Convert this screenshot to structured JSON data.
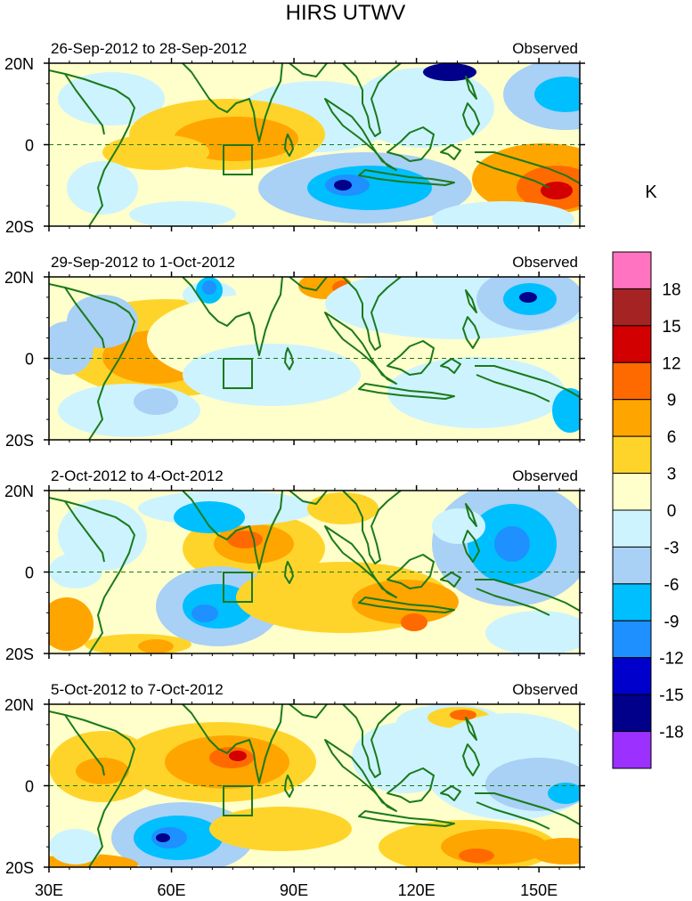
{
  "figure": {
    "title": "HIRS UTWV",
    "unit_label": "K"
  },
  "panels": [
    {
      "date_range": "26-Sep-2012 to 28-Sep-2012",
      "tag": "Observed"
    },
    {
      "date_range": "29-Sep-2012 to 1-Oct-2012",
      "tag": "Observed"
    },
    {
      "date_range": "2-Oct-2012 to 4-Oct-2012",
      "tag": "Observed"
    },
    {
      "date_range": "5-Oct-2012 to 7-Oct-2012",
      "tag": "Observed"
    }
  ],
  "axes": {
    "y_ticks": [
      "20N",
      "0",
      "20S"
    ],
    "x_ticks": [
      "30E",
      "60E",
      "90E",
      "120E",
      "150E"
    ],
    "lon_range": [
      30,
      160
    ],
    "lat_range": [
      -20,
      20
    ]
  },
  "colorbar": {
    "levels": [
      "18",
      "15",
      "12",
      "9",
      "6",
      "3",
      "0",
      "-3",
      "-6",
      "-9",
      "-12",
      "-15",
      "-18"
    ],
    "colors": [
      "#ff73c1",
      "#a52323",
      "#d20000",
      "#ff6a00",
      "#ffa500",
      "#ffd42a",
      "#ffffcc",
      "#cdf3ff",
      "#a9d0f5",
      "#00bfff",
      "#1e90ff",
      "#0000cd",
      "#00008b",
      "#9b30ff"
    ]
  },
  "colors": {
    "coast": "#1a7a1a",
    "frame": "#000000"
  }
}
